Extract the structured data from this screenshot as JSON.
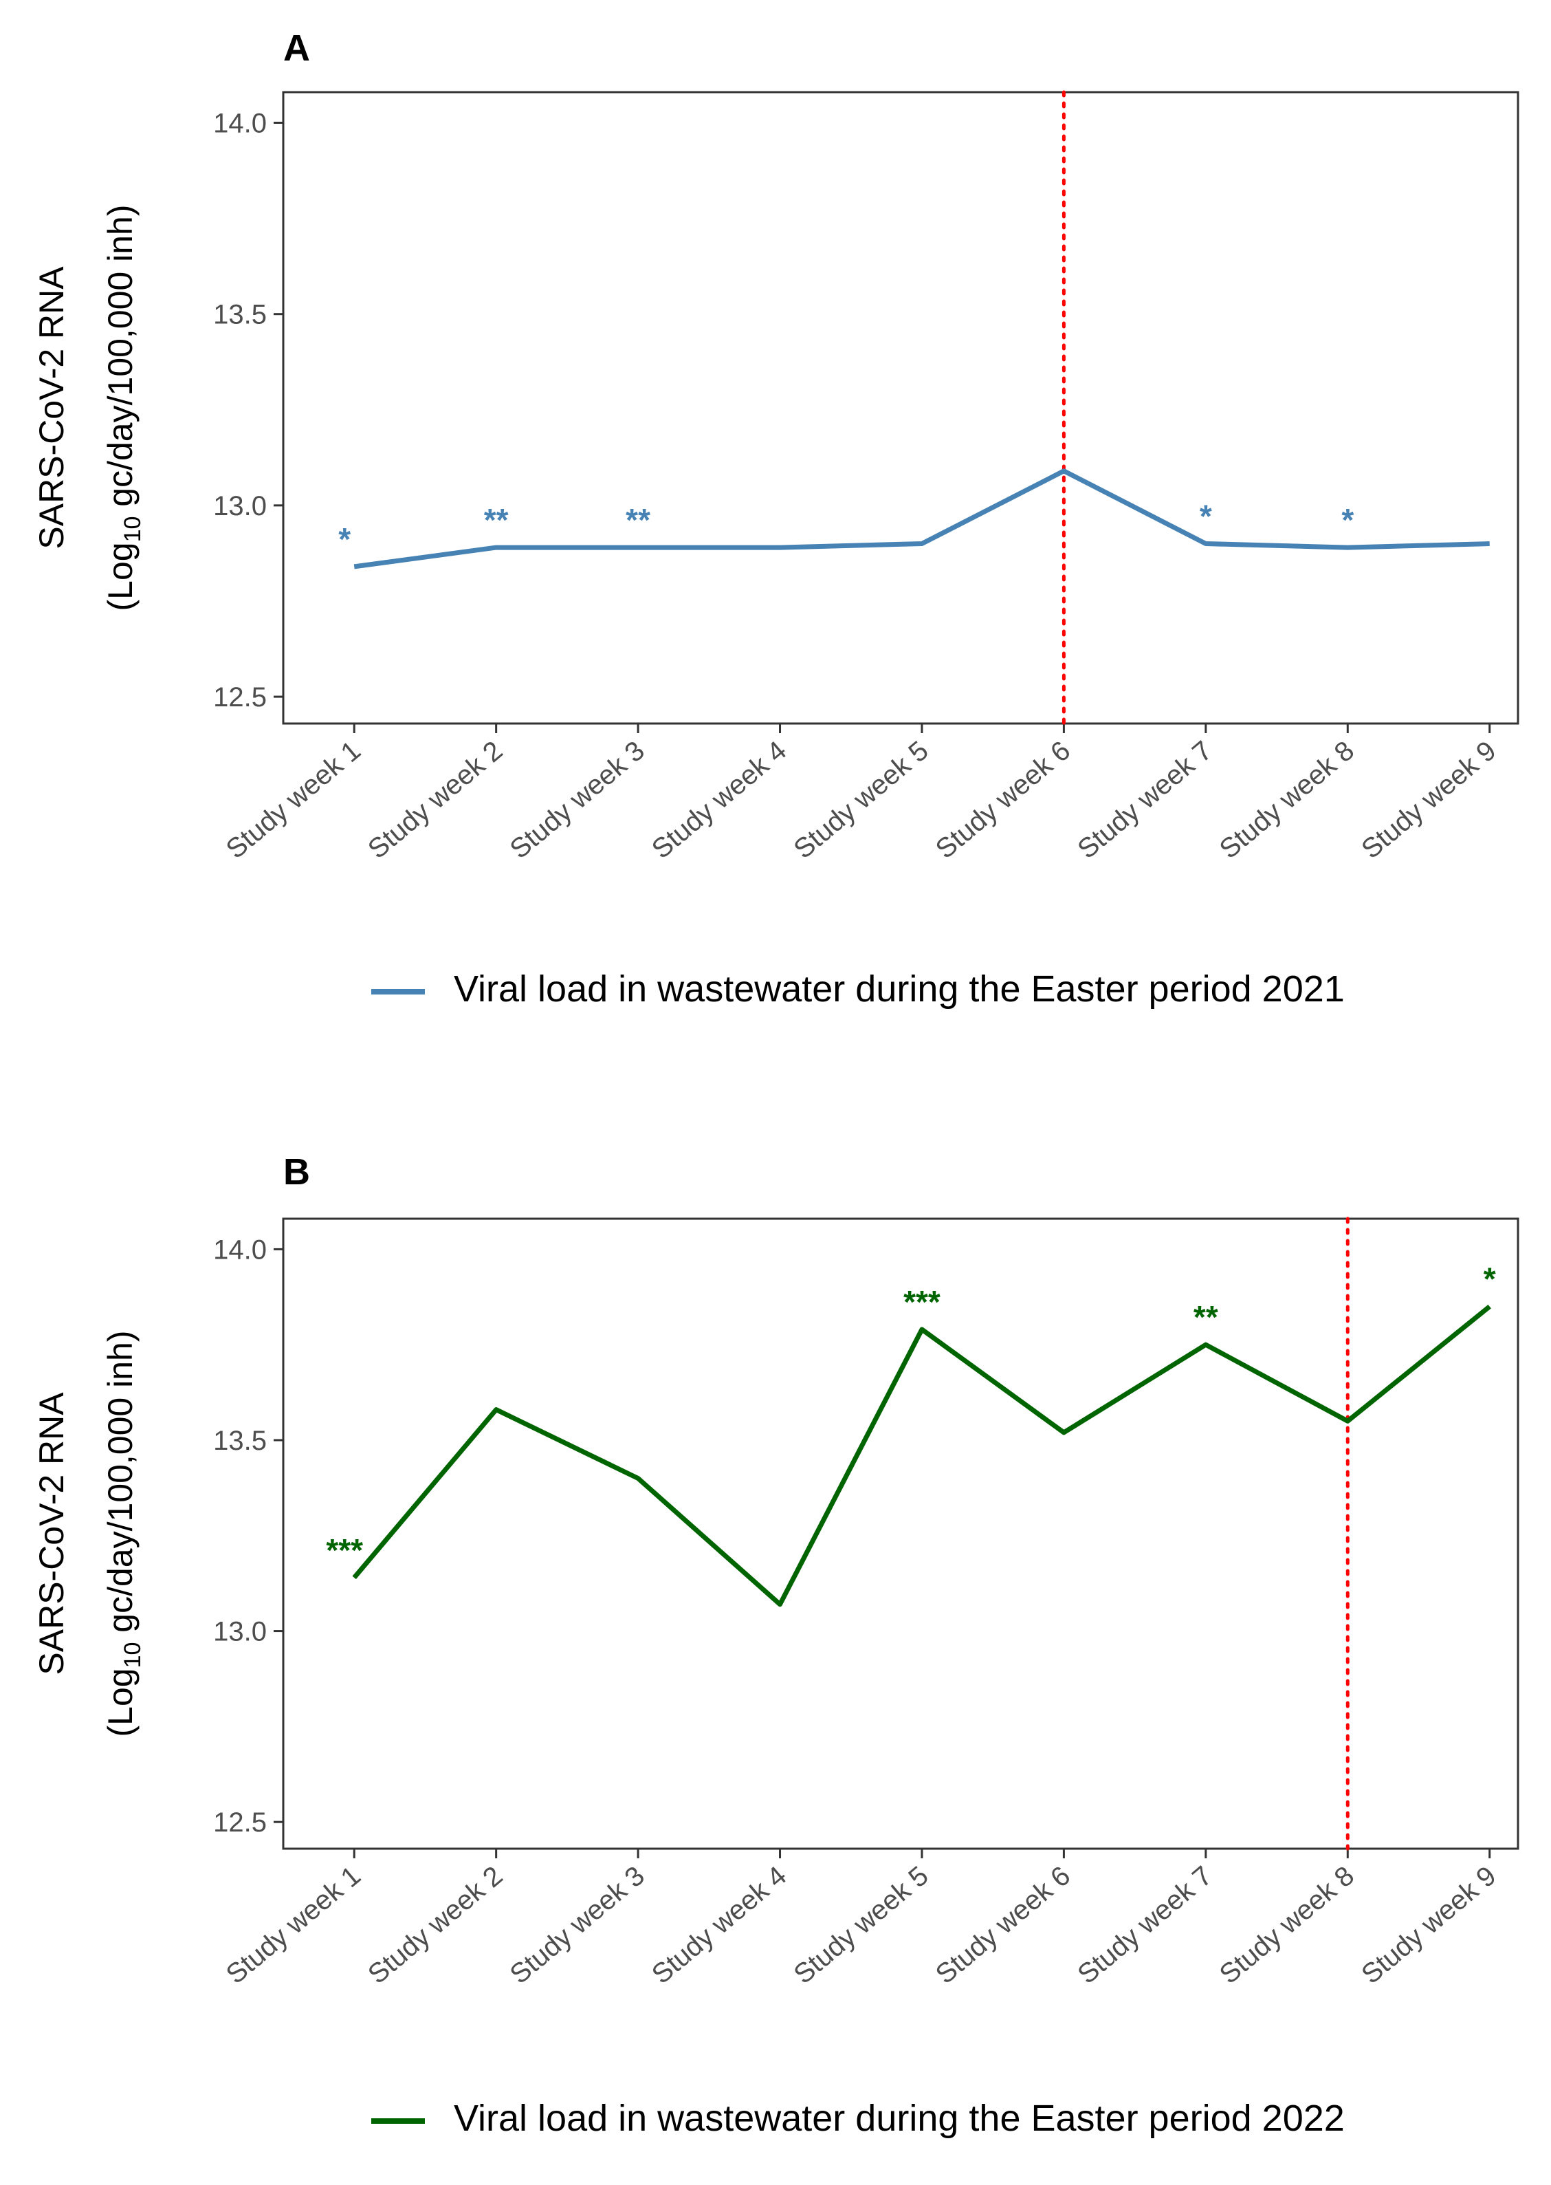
{
  "chart_data": [
    {
      "type": "line",
      "panel_label": "A",
      "categories": [
        "Study week 1",
        "Study week 2",
        "Study week 3",
        "Study week 4",
        "Study week 5",
        "Study week 6",
        "Study week 7",
        "Study week 8",
        "Study week 9"
      ],
      "series": [
        {
          "name": "Viral load in wastewater during the Easter period 2021",
          "color": "#4682b4",
          "values": [
            12.84,
            12.89,
            12.89,
            12.89,
            12.9,
            13.09,
            12.9,
            12.89,
            12.9
          ]
        }
      ],
      "significance": [
        "*",
        "**",
        "**",
        "",
        "",
        "",
        "*",
        "*",
        ""
      ],
      "reference_line": {
        "category": "Study week 6",
        "color": "#ff0000",
        "style": "dotted"
      },
      "ylabel_line1": "SARS-CoV-2 RNA",
      "ylabel_line2_prefix": "(Log",
      "ylabel_line2_sub": "10",
      "ylabel_line2_suffix": " gc/day/100,000 inh)",
      "ylim": [
        12.43,
        14.08
      ],
      "yticks": [
        12.5,
        13.0,
        13.5,
        14.0
      ],
      "ytick_labels": [
        "12.5",
        "13.0",
        "13.5",
        "14.0"
      ],
      "legend_position": "bottom"
    },
    {
      "type": "line",
      "panel_label": "B",
      "categories": [
        "Study week 1",
        "Study week 2",
        "Study week 3",
        "Study week 4",
        "Study week 5",
        "Study week 6",
        "Study week 7",
        "Study week 8",
        "Study week 9"
      ],
      "series": [
        {
          "name": "Viral load in wastewater during the Easter period 2022",
          "color": "#006400",
          "values": [
            13.14,
            13.58,
            13.4,
            13.07,
            13.79,
            13.52,
            13.75,
            13.55,
            13.85
          ]
        }
      ],
      "significance": [
        "***",
        "",
        "",
        "",
        "***",
        "",
        "**",
        "",
        "*"
      ],
      "reference_line": {
        "category": "Study week 8",
        "color": "#ff0000",
        "style": "dotted"
      },
      "ylabel_line1": "SARS-CoV-2 RNA",
      "ylabel_line2_prefix": "(Log",
      "ylabel_line2_sub": "10",
      "ylabel_line2_suffix": " gc/day/100,000 inh)",
      "ylim": [
        12.43,
        14.08
      ],
      "yticks": [
        12.5,
        13.0,
        13.5,
        14.0
      ],
      "ytick_labels": [
        "12.5",
        "13.0",
        "13.5",
        "14.0"
      ],
      "legend_position": "bottom"
    }
  ]
}
